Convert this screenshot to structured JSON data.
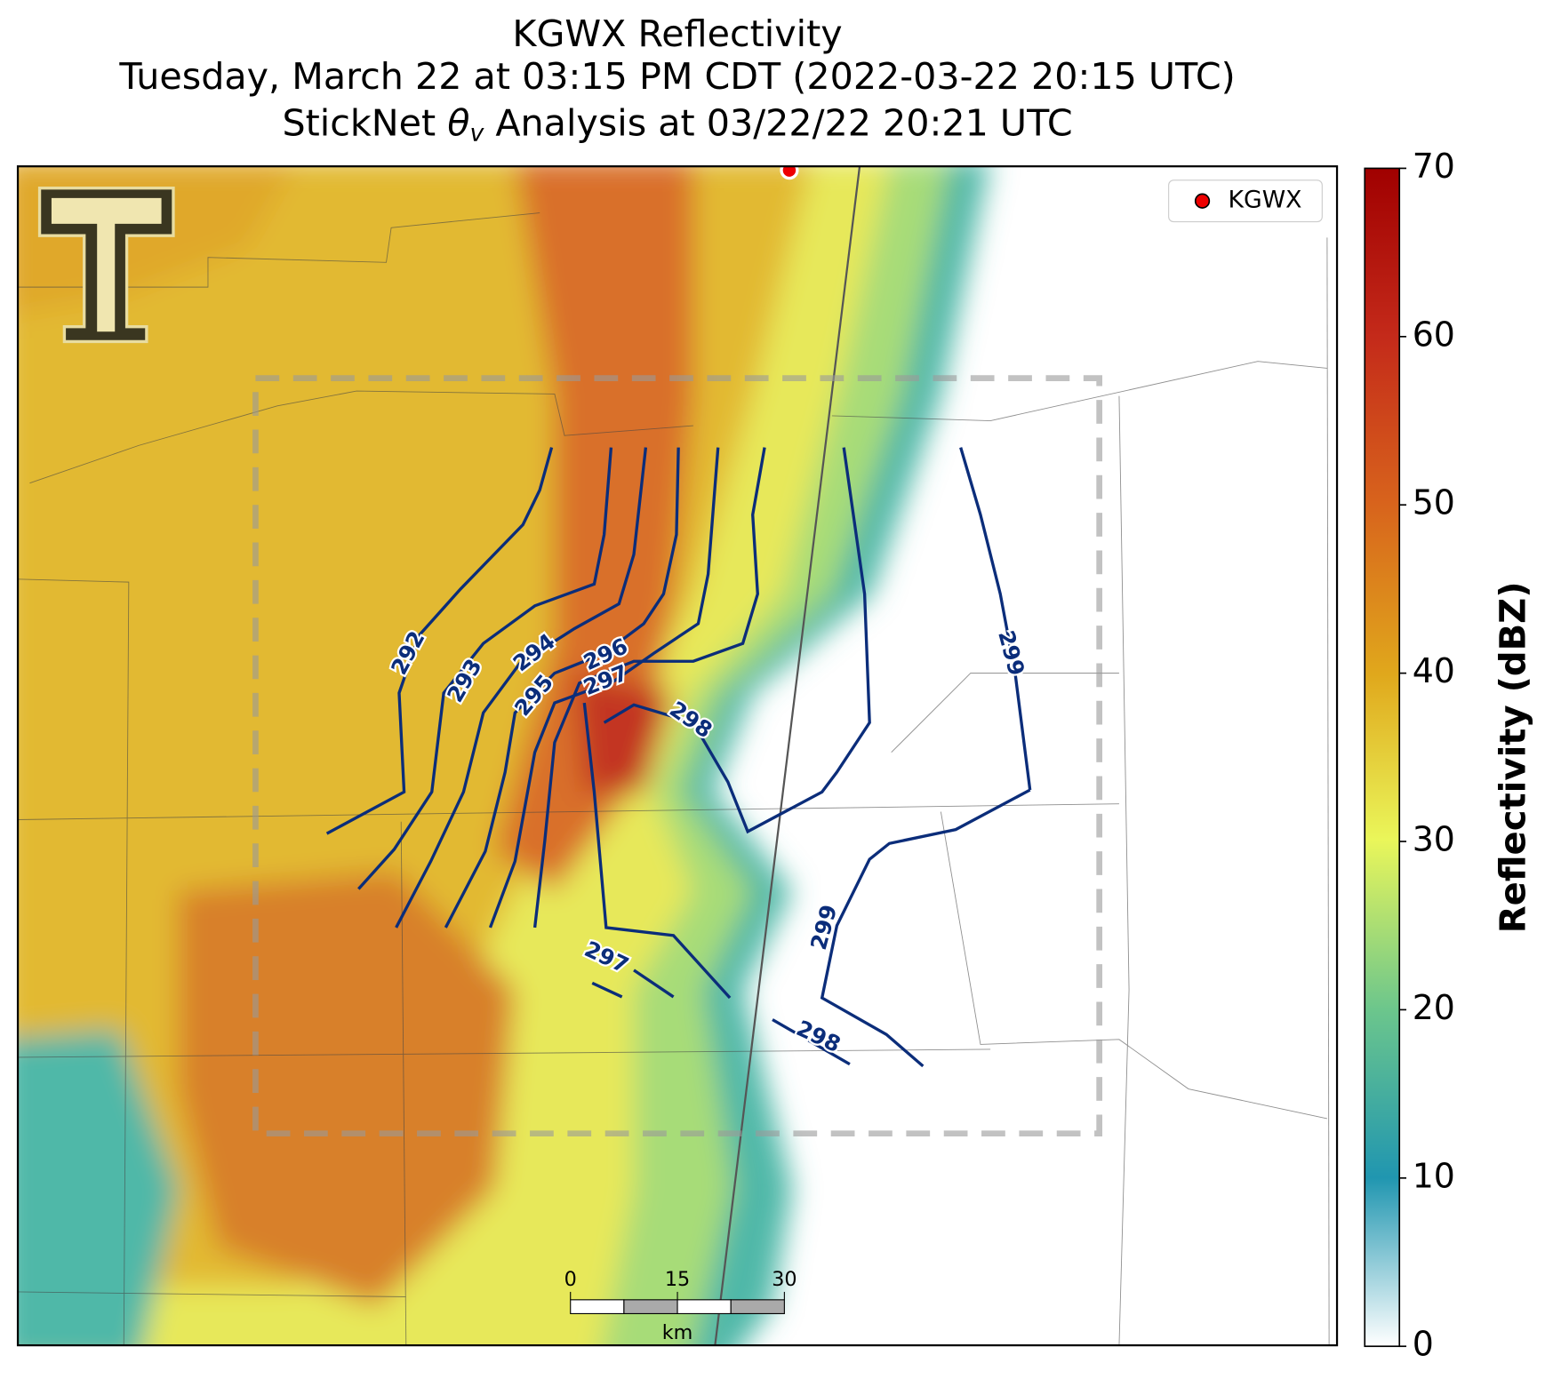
{
  "header": {
    "title": "KGWX Reflectivity",
    "subtitle": "Tuesday, March 22 at 03:15 PM CDT (2022-03-22 20:15 UTC)",
    "analysis": {
      "prefix": "StickNet",
      "symbol": "θ",
      "subscript": "v",
      "suffix": "Analysis at 03/22/22 20:21 UTC"
    }
  },
  "legend": {
    "label": "KGWX"
  },
  "colorbar": {
    "label": "Reflectivity (dBZ)",
    "lim": [
      0,
      70
    ],
    "ticks": [
      0,
      10,
      20,
      30,
      40,
      50,
      60,
      70
    ]
  },
  "scale_bar": {
    "ticks": [
      0,
      15,
      30
    ],
    "unit": "km"
  },
  "contours": [
    {
      "level": 292
    },
    {
      "level": 293
    },
    {
      "level": 294
    },
    {
      "level": 295
    },
    {
      "level": 296
    },
    {
      "level": 297
    },
    {
      "level": 298
    },
    {
      "level": 299
    },
    {
      "level": 299
    },
    {
      "level": 297
    },
    {
      "level": 298
    }
  ]
}
